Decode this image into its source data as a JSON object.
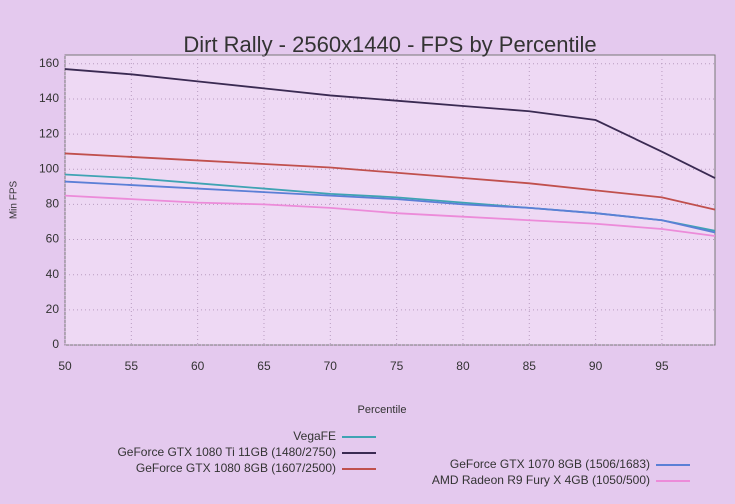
{
  "chart_data": {
    "type": "line",
    "title": "Dirt Rally - 2560x1440 - FPS by Percentile",
    "x_label": "Percentile",
    "y_label": "Min FPS",
    "x": [
      50,
      55,
      60,
      65,
      70,
      75,
      80,
      85,
      90,
      95,
      99
    ],
    "xlim": [
      50,
      99
    ],
    "xticks": [
      50,
      55,
      60,
      65,
      70,
      75,
      80,
      85,
      90,
      95
    ],
    "ylim": [
      0,
      165
    ],
    "yticks": [
      0,
      20,
      40,
      60,
      80,
      100,
      120,
      140,
      160
    ],
    "grid": true,
    "legend": "bottom",
    "series": [
      {
        "name": "VegaFE",
        "color": "#3fa3b3",
        "values": [
          97,
          95,
          92,
          89,
          86,
          84,
          81,
          78,
          75,
          71,
          65
        ]
      },
      {
        "name": "GeForce GTX 1080 Ti 11GB (1480/2750)",
        "color": "#3a2a52",
        "values": [
          157,
          154,
          150,
          146,
          142,
          139,
          136,
          133,
          128,
          110,
          95
        ]
      },
      {
        "name": "GeForce GTX 1080 8GB (1607/2500)",
        "color": "#c0504d",
        "values": [
          109,
          107,
          105,
          103,
          101,
          98,
          95,
          92,
          88,
          84,
          77
        ]
      },
      {
        "name": "GeForce GTX 1070 8GB (1506/1683)",
        "color": "#5b7fd6",
        "values": [
          93,
          91,
          89,
          87,
          85,
          83,
          80,
          78,
          75,
          71,
          64
        ]
      },
      {
        "name": "AMD Radeon R9 Fury X 4GB (1050/500)",
        "color": "#ec8bd9",
        "values": [
          85,
          83,
          81,
          80,
          78,
          75,
          73,
          71,
          69,
          66,
          62
        ]
      }
    ]
  }
}
